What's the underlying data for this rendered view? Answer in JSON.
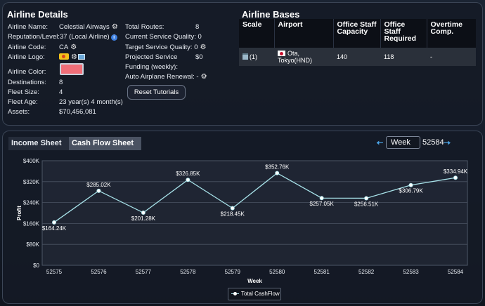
{
  "details": {
    "title": "Airline Details",
    "name_label": "Airline Name:",
    "name_value": "Celestial Airways",
    "reputation_label": "Reputation/Level:",
    "reputation_value": "37 (Local Airline)",
    "code_label": "Airline Code:",
    "code_value": "CA",
    "logo_label": "Airline Logo:",
    "color_label": "Airline Color:",
    "color_value": "#f06e78",
    "destinations_label": "Destinations:",
    "destinations_value": "8",
    "fleet_size_label": "Fleet Size:",
    "fleet_size_value": "4",
    "fleet_age_label": "Fleet Age:",
    "fleet_age_value": "23 year(s) 4 month(s)",
    "assets_label": "Assets:",
    "assets_value": "$70,456,081",
    "total_routes_label": "Total Routes:",
    "total_routes_value": "8",
    "current_quality_label": "Current Service Quality:",
    "current_quality_value": "0",
    "target_quality_label": "Target Service Quality:",
    "target_quality_value": "0",
    "projected_label_1": "Projected Service",
    "projected_label_2": "Funding (weekly):",
    "projected_value": "$0",
    "auto_renewal_label": "Auto Airplane Renewal:",
    "auto_renewal_value": "-",
    "reset_tutorials_label": "Reset Tutorials"
  },
  "bases": {
    "title": "Airline Bases",
    "columns": [
      "Scale",
      "Airport",
      "Office Staff Capacity",
      "Office Staff Required",
      "Overtime Comp."
    ],
    "rows": [
      {
        "scale": "(1)",
        "airport": "Ota, Tokyo(HND)",
        "capacity": "140",
        "required": "118",
        "overtime": "-"
      }
    ]
  },
  "sheet": {
    "tabs": [
      "Income Sheet",
      "Cash Flow Sheet"
    ],
    "active_tab": "Cash Flow Sheet",
    "period": "Week",
    "period_number": "52584",
    "prev_icon": "arrow-left-icon",
    "next_icon": "arrow-right-icon"
  },
  "chart_data": {
    "type": "line",
    "xlabel": "Week",
    "ylabel": "Profit",
    "ylim": [
      0,
      400000
    ],
    "y_ticks": [
      0,
      80000,
      160000,
      240000,
      320000,
      400000
    ],
    "y_tick_labels": [
      "$0",
      "$80K",
      "$160K",
      "$240K",
      "$320K",
      "$400K"
    ],
    "x": [
      "52575",
      "52576",
      "52577",
      "52578",
      "52579",
      "52580",
      "52581",
      "52582",
      "52583",
      "52584"
    ],
    "series": [
      {
        "name": "Total CashFlow",
        "color": "#a8e3ea",
        "values": [
          164240,
          285020,
          201280,
          326850,
          218450,
          352760,
          257050,
          256510,
          306790,
          334940
        ],
        "labels": [
          "$164.24K",
          "$285.02K",
          "$201.28K",
          "$326.85K",
          "$218.45K",
          "$352.76K",
          "$257.05K",
          "$256.51K",
          "$306.79K",
          "$334.94K"
        ]
      }
    ],
    "grid": true,
    "legend": "bottom-center"
  }
}
